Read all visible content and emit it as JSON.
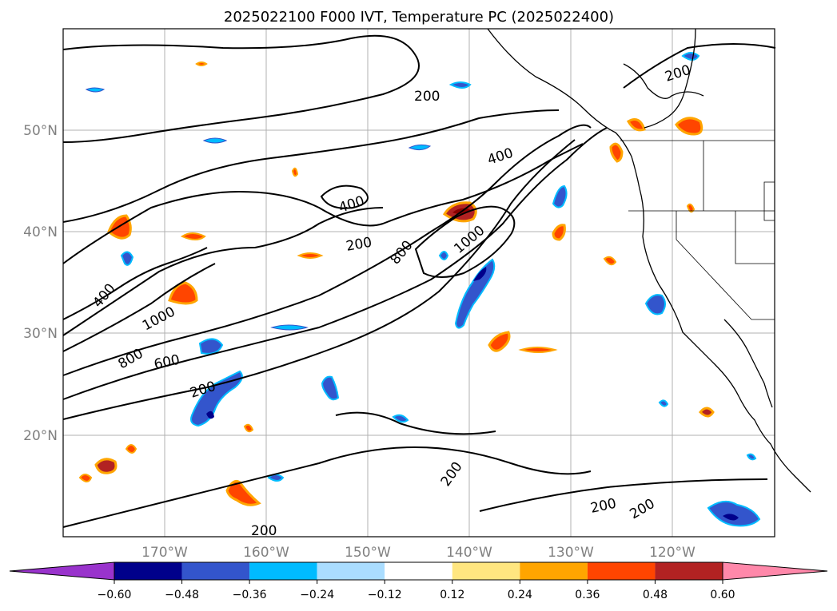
{
  "title": "2025022100 F000 IVT, Temperature PC (2025022400)",
  "lat_labels": [
    "50°N",
    "40°N",
    "30°N",
    "20°N"
  ],
  "lon_labels": [
    "170°W",
    "160°W",
    "150°W",
    "140°W",
    "130°W",
    "120°W"
  ],
  "colorbar": {
    "ticks": [
      "−0.60",
      "−0.48",
      "−0.36",
      "−0.24",
      "−0.12",
      "0.12",
      "0.24",
      "0.36",
      "0.48",
      "0.60"
    ],
    "colors": [
      "#9933cc",
      "#00008b",
      "#3355cc",
      "#00bbff",
      "#aaddff",
      "#ffffff",
      "#ffe680",
      "#ffa500",
      "#ff4500",
      "#b22222",
      "#ff88aa"
    ]
  },
  "contour_labels": [
    "200",
    "400",
    "400",
    "200",
    "800",
    "1000",
    "400",
    "1000",
    "800",
    "600",
    "200",
    "200",
    "200",
    "200",
    "200",
    "200"
  ],
  "colors": {
    "coast": "#000000",
    "grid": "#b0b0b0",
    "contour": "#000000"
  }
}
